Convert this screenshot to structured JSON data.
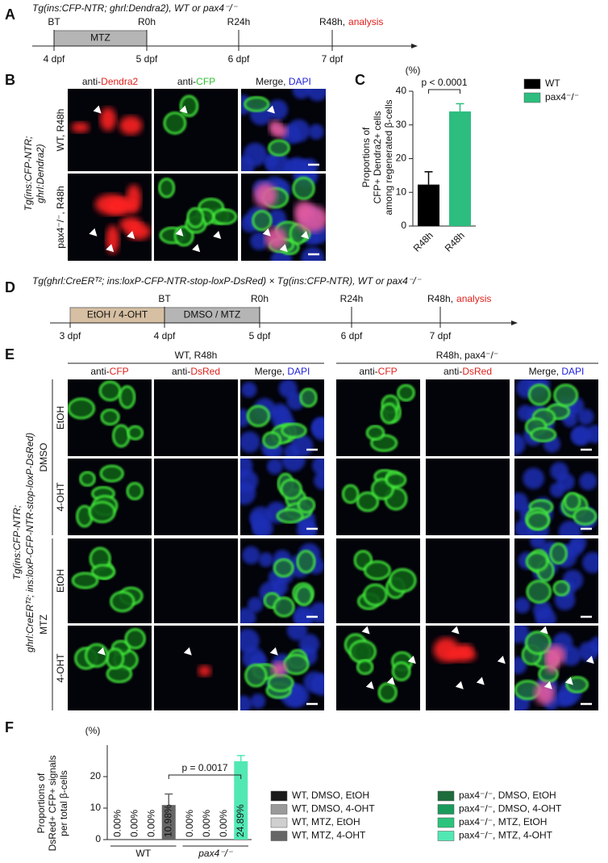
{
  "panel_a": {
    "letter": "A",
    "title": "Tg(ins:CFP-NTR; ghrl:Dendra2), WT or pax4⁻/⁻",
    "treatment": "MTZ",
    "timepoints": [
      "BT",
      "R0h",
      "R24h",
      "R48h,"
    ],
    "analysis": "analysis",
    "days": [
      "4 dpf",
      "5 dpf",
      "6 dpf",
      "7 dpf"
    ]
  },
  "panel_b": {
    "letter": "B",
    "side_label": [
      "Tg(ins:CFP-NTR;",
      "ghrl:Dendra2)"
    ],
    "row_labels": [
      "WT, R48h",
      "pax4⁻/⁻, R48h"
    ],
    "columns": [
      [
        "anti-",
        "Dendra2"
      ],
      [
        "anti-",
        "CFP"
      ],
      [
        "Merge, ",
        "DAPI"
      ]
    ]
  },
  "panel_d": {
    "letter": "D",
    "title": "Tg(ghrl:CreERᵀ²; ins:loxP-CFP-NTR-stop-loxP-DsRed) × Tg(ins:CFP-NTR), WT or pax4⁻/⁻",
    "treatments": [
      "EtOH / 4-OHT",
      "DMSO / MTZ"
    ],
    "timepoints": [
      "BT",
      "R0h",
      "R24h",
      "R48h,"
    ],
    "analysis": "analysis",
    "days": [
      "3 dpf",
      "4 dpf",
      "5 dpf",
      "6 dpf",
      "7 dpf"
    ]
  },
  "panel_e": {
    "letter": "E",
    "side_label": [
      "Tg(ins:CFP-NTR;",
      "ghrl:CreERᵀ²; ins:loxP-CFP-NTR-stop-loxP-DsRed)"
    ],
    "groups": [
      "WT, R48h",
      "R48h, pax4⁻/⁻"
    ],
    "columns": [
      [
        "anti-",
        "CFP"
      ],
      [
        "anti-",
        "DsRed"
      ],
      [
        "Merge, ",
        "DAPI"
      ]
    ],
    "drug_labels": [
      "DMSO",
      "MTZ"
    ],
    "row_labels": [
      "EtOH",
      "4-OHT",
      "EtOH",
      "4-OHT"
    ]
  },
  "chart_data": [
    {
      "type": "bar",
      "letter": "C",
      "unit": "(%)",
      "y_label": [
        "Proportions of",
        "CFP+ Dendra2+ cells",
        "among regenerated β-cells"
      ],
      "categories": [
        "R48h",
        "R48h"
      ],
      "series": [
        {
          "name": "WT",
          "color": "#000000",
          "values": [
            12.3,
            null
          ],
          "errors": [
            3.8,
            null
          ]
        },
        {
          "name": "pax4⁻/⁻",
          "color": "#2dbd7e",
          "values": [
            null,
            34
          ],
          "errors": [
            null,
            2.3
          ]
        }
      ],
      "ylim": [
        0,
        40
      ],
      "yticks": [
        0,
        10,
        20,
        30,
        40
      ],
      "annotation": "p < 0.0001"
    },
    {
      "type": "bar",
      "letter": "F",
      "unit": "(%)",
      "y_label": [
        "Proportions of",
        "DsRed+ CFP+ signals",
        "per total β-cells"
      ],
      "categories": [
        "WT",
        "pax4⁻/⁻"
      ],
      "series": [
        {
          "name": "WT, DMSO, EtOH",
          "color": "#1a1a1a",
          "values": [
            0,
            null
          ],
          "value_labels": [
            "0.00%",
            null
          ]
        },
        {
          "name": "WT, DMSO, 4-OHT",
          "color": "#9a9a9a",
          "values": [
            0,
            null
          ],
          "value_labels": [
            "0.00%",
            null
          ]
        },
        {
          "name": "WT, MTZ, EtOH",
          "color": "#cfcfcf",
          "values": [
            0,
            null
          ],
          "value_labels": [
            "0.00%",
            null
          ]
        },
        {
          "name": "WT, MTZ, 4-OHT",
          "color": "#666666",
          "values": [
            10.98,
            null
          ],
          "value_labels": [
            "10.98%",
            null
          ],
          "errors": [
            3.5,
            null
          ]
        },
        {
          "name": "pax4⁻/⁻, DMSO, EtOH",
          "color": "#1e6b3c",
          "values": [
            null,
            0
          ],
          "value_labels": [
            null,
            "0.00%"
          ]
        },
        {
          "name": "pax4⁻/⁻, DMSO, 4-OHT",
          "color": "#1a9a5c",
          "values": [
            null,
            0
          ],
          "value_labels": [
            null,
            "0.00%"
          ]
        },
        {
          "name": "pax4⁻/⁻, MTZ, EtOH",
          "color": "#2cc47c",
          "values": [
            null,
            0
          ],
          "value_labels": [
            null,
            "0.00%"
          ]
        },
        {
          "name": "pax4⁻/⁻, MTZ, 4-OHT",
          "color": "#52e8b4",
          "values": [
            null,
            24.89
          ],
          "value_labels": [
            null,
            "24.89%"
          ],
          "errors": [
            null,
            1.8
          ]
        }
      ],
      "ylim": [
        0,
        30
      ],
      "yticks": [
        0,
        10,
        20
      ],
      "annotation": "p = 0.0017"
    }
  ]
}
